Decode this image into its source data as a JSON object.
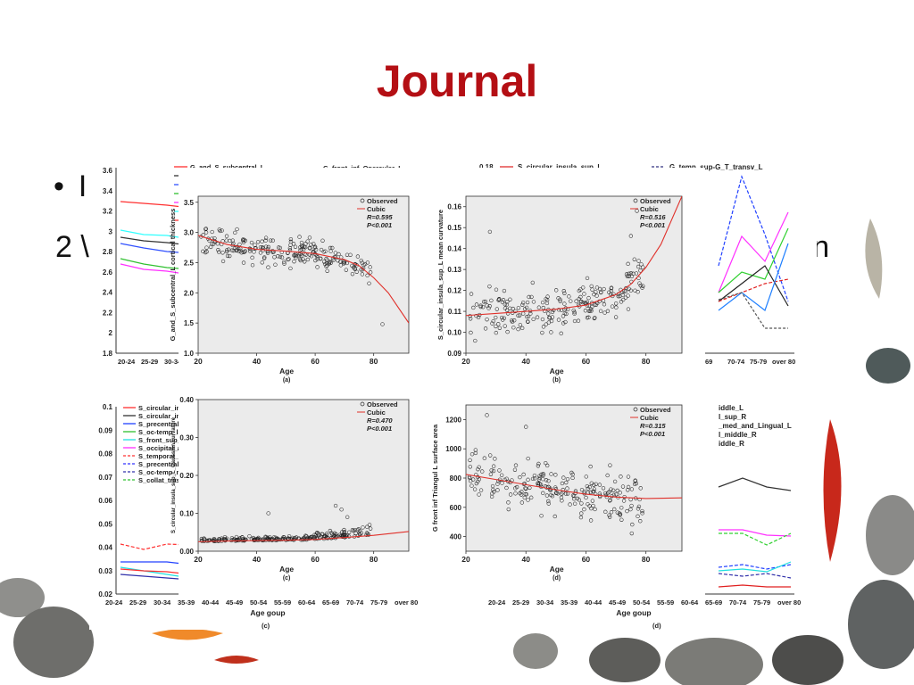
{
  "slide": {
    "title": "Journal",
    "bullet_visible": "I",
    "line2_left": "2 \\",
    "line2_right": "ern"
  },
  "colors": {
    "title": "#b40f14",
    "observed": "#222222",
    "cubic": "#e0302a",
    "panel_bg": "#ebebeb"
  },
  "background": {
    "legend_top_left": [
      "G_and_S_subcentral_L",
      "G_front_inf_Opercular_L",
      "G",
      "G",
      "G",
      "G",
      "G"
    ],
    "legend_top_right": [
      "S_circular_insula_sup_L",
      "G_temp_sup-G_T_transv_L"
    ],
    "legend_bottom_left": [
      "S_circular_insu",
      "S_circular_insu",
      "S_precentral-i",
      "S_oc-temp_lat",
      "S_front_sup_R",
      "S_occipital_an",
      "S_temporal_su",
      "S_precentral-i",
      "S_oc-temp_m",
      "S_collat_trasv"
    ],
    "legend_bottom_right": [
      "iddle_L",
      "l_sup_R",
      "_med_and_Lingual_L",
      "l_middle_R",
      "iddle_R"
    ],
    "age_groups": [
      "20-24",
      "25-29",
      "30-34",
      "35-39",
      "40-44",
      "45-49",
      "50-54",
      "55-59",
      "60-64",
      "65-69",
      "70-74",
      "75-79",
      "over 80"
    ],
    "age_groups_short_tl": [
      "20-24",
      "25-29",
      "30-34",
      "35-3"
    ],
    "age_groups_right_top": [
      "69",
      "70-74",
      "75-79",
      "over 80"
    ],
    "xlabel": "Age goup",
    "panel_c_label": "(c)",
    "panel_d_label": "(d)",
    "yticks_tl": [
      "3.6",
      "3.4",
      "3.2",
      "3",
      "2.8",
      "2.6",
      "2.4",
      "2.2",
      "2",
      "1.8"
    ],
    "yticks_bl": [
      "0.1",
      "0.09",
      "0.08",
      "0.07",
      "0.06",
      "0.05",
      "0.04",
      "0.03",
      "0.02"
    ],
    "ytick_tr": "0.18"
  },
  "chart_data": [
    {
      "type": "scatter",
      "panel": "(a)",
      "ylabel": "G_and_S_subcentral_L cortical thickness",
      "xlabel": "Age",
      "xlim": [
        20,
        92
      ],
      "ylim": [
        1.0,
        3.6
      ],
      "xticks": [
        20,
        40,
        60,
        80
      ],
      "yticks": [
        1.0,
        1.5,
        2.0,
        2.5,
        3.0,
        3.5
      ],
      "ytick_labels": [
        "1.0",
        "1.5",
        "2.0",
        "2.5",
        "3.0",
        "3.5"
      ],
      "legend": [
        "Observed",
        "Cubic"
      ],
      "stats": [
        "R=0.595",
        "P<0.001"
      ],
      "fit": {
        "x": [
          20,
          30,
          40,
          50,
          60,
          70,
          75,
          80,
          85,
          92
        ],
        "y": [
          2.95,
          2.8,
          2.72,
          2.69,
          2.65,
          2.55,
          2.45,
          2.25,
          2.0,
          1.5
        ]
      },
      "scatter": {
        "x_range": [
          21,
          79
        ],
        "noise": 0.22,
        "n": 230,
        "outliers": [
          [
            83,
            1.48
          ]
        ]
      }
    },
    {
      "type": "scatter",
      "panel": "(b)",
      "ylabel": "S_circular_insula_sup_L mean curvature",
      "xlabel": "Age",
      "xlim": [
        20,
        92
      ],
      "ylim": [
        0.09,
        0.165
      ],
      "xticks": [
        20,
        40,
        60,
        80
      ],
      "yticks": [
        0.09,
        0.1,
        0.11,
        0.12,
        0.13,
        0.14,
        0.15,
        0.16
      ],
      "ytick_labels": [
        "0.09",
        "0.10",
        "0.11",
        "0.12",
        "0.13",
        "0.14",
        "0.15",
        "0.16"
      ],
      "legend": [
        "Observed",
        "Cubic"
      ],
      "stats": [
        "R=0.516",
        "P<0.001"
      ],
      "fit": {
        "x": [
          20,
          30,
          40,
          50,
          60,
          70,
          75,
          80,
          85,
          92
        ],
        "y": [
          0.108,
          0.109,
          0.11,
          0.111,
          0.113,
          0.118,
          0.123,
          0.131,
          0.142,
          0.165
        ]
      },
      "scatter": {
        "x_range": [
          21,
          79
        ],
        "noise": 0.01,
        "n": 230,
        "outliers": [
          [
            77,
            0.158
          ],
          [
            28,
            0.148
          ],
          [
            75,
            0.146
          ]
        ]
      }
    },
    {
      "type": "scatter",
      "panel": "(c)",
      "ylabel": "S_circular_insula_sup_L_Gaussian curvature",
      "xlabel": "Age",
      "xlim": [
        20,
        92
      ],
      "ylim": [
        0.0,
        0.4
      ],
      "xticks": [
        20,
        40,
        60,
        80
      ],
      "yticks": [
        0.0,
        0.1,
        0.2,
        0.3,
        0.4
      ],
      "ytick_labels": [
        "0.00",
        "0.10",
        "0.20",
        "0.30",
        "0.40"
      ],
      "legend": [
        "Observed",
        "Cubic"
      ],
      "stats": [
        "R=0.470",
        "P<0.001"
      ],
      "fit": {
        "x": [
          20,
          30,
          40,
          50,
          60,
          70,
          80,
          92
        ],
        "y": [
          0.025,
          0.027,
          0.028,
          0.029,
          0.031,
          0.036,
          0.042,
          0.052
        ]
      },
      "scatter": {
        "x_range": [
          21,
          79
        ],
        "noise": 0.01,
        "n": 230,
        "outliers": [
          [
            44,
            0.1
          ],
          [
            67,
            0.12
          ],
          [
            69,
            0.11
          ],
          [
            71,
            0.09
          ]
        ]
      }
    },
    {
      "type": "scatter",
      "panel": "(d)",
      "ylabel": "G front inf Triangul L surface area",
      "xlabel": "Age",
      "xlim": [
        20,
        92
      ],
      "ylim": [
        300,
        1300
      ],
      "xticks": [
        20,
        40,
        60,
        80
      ],
      "yticks": [
        400,
        600,
        800,
        1000,
        1200
      ],
      "ytick_labels": [
        "400",
        "600",
        "800",
        "1000",
        "1200"
      ],
      "legend": [
        "Observed",
        "Cubic"
      ],
      "stats": [
        "R=0.315",
        "P<0.001"
      ],
      "fit": {
        "x": [
          20,
          30,
          40,
          50,
          60,
          70,
          80,
          92
        ],
        "y": [
          825,
          790,
          755,
          720,
          690,
          670,
          660,
          665
        ]
      },
      "scatter": {
        "x_range": [
          21,
          79
        ],
        "noise": 160,
        "n": 230,
        "outliers": [
          [
            27,
            1230
          ],
          [
            40,
            1150
          ]
        ]
      }
    }
  ]
}
